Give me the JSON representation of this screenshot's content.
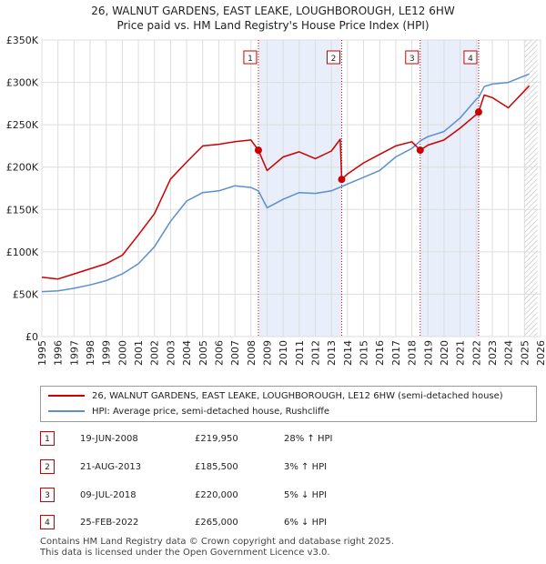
{
  "title_line1": "26, WALNUT GARDENS, EAST LEAKE, LOUGHBOROUGH, LE12 6HW",
  "title_line2": "Price paid vs. HM Land Registry's House Price Index (HPI)",
  "legend": {
    "property_label": "26, WALNUT GARDENS, EAST LEAKE, LOUGHBOROUGH, LE12 6HW (semi-detached house)",
    "hpi_label": "HPI: Average price, semi-detached house, Rushcliffe"
  },
  "sales": [
    {
      "num": "1",
      "date": "19-JUN-2008",
      "price": "£219,950",
      "hpi": "28% ↑ HPI"
    },
    {
      "num": "2",
      "date": "21-AUG-2013",
      "price": "£185,500",
      "hpi": "3% ↑ HPI"
    },
    {
      "num": "3",
      "date": "09-JUL-2018",
      "price": "£220,000",
      "hpi": "5% ↓ HPI"
    },
    {
      "num": "4",
      "date": "25-FEB-2022",
      "price": "£265,000",
      "hpi": "6% ↓ HPI"
    }
  ],
  "footer_line1": "Contains HM Land Registry data © Crown copyright and database right 2025.",
  "footer_line2": "This data is licensed under the Open Government Licence v3.0.",
  "colors": {
    "property": "#cc0000",
    "hpi": "#5b8fd0",
    "shade": "#e8eefa",
    "grid": "#dddddd"
  },
  "chart_data": {
    "type": "line",
    "title": "Price paid vs. HM Land Registry's House Price Index (HPI)",
    "xlabel": "",
    "ylabel": "",
    "xlim": [
      1995,
      2026
    ],
    "ylim": [
      0,
      350000
    ],
    "y_ticks": [
      0,
      50000,
      100000,
      150000,
      200000,
      250000,
      300000,
      350000
    ],
    "y_tick_labels": [
      "£0",
      "£50K",
      "£100K",
      "£150K",
      "£200K",
      "£250K",
      "£300K",
      "£350K"
    ],
    "x_ticks": [
      1995,
      1996,
      1997,
      1998,
      1999,
      2000,
      2001,
      2002,
      2003,
      2004,
      2005,
      2006,
      2007,
      2008,
      2009,
      2010,
      2011,
      2012,
      2013,
      2014,
      2015,
      2016,
      2017,
      2018,
      2019,
      2020,
      2021,
      2022,
      2023,
      2024,
      2025,
      2026
    ],
    "shaded_periods": [
      [
        2008.46,
        2013.64
      ],
      [
        2018.52,
        2022.15
      ]
    ],
    "future_hatch_from": 2025.0,
    "series": [
      {
        "name": "26, WALNUT GARDENS, EAST LEAKE, LOUGHBOROUGH, LE12 6HW (semi-detached house)",
        "x": [
          1995,
          1996,
          1997,
          1998,
          1999,
          2000,
          2001,
          2002,
          2003,
          2004,
          2005,
          2006,
          2007,
          2008.0,
          2008.46,
          2009,
          2010,
          2011,
          2012,
          2013.0,
          2013.55,
          2013.64,
          2014,
          2015,
          2016,
          2017,
          2018.0,
          2018.52,
          2019,
          2020,
          2021,
          2022.0,
          2022.15,
          2022.5,
          2023,
          2024,
          2025.3
        ],
        "y": [
          70000,
          68000,
          74000,
          80000,
          86000,
          96000,
          120000,
          145000,
          186000,
          206000,
          225000,
          227000,
          230000,
          232000,
          219950,
          196000,
          212000,
          218000,
          210000,
          219000,
          233000,
          185500,
          192000,
          205000,
          215000,
          225000,
          230000,
          220000,
          226000,
          232000,
          246000,
          262000,
          265000,
          285000,
          282000,
          270000,
          296000
        ]
      },
      {
        "name": "HPI: Average price, semi-detached house, Rushcliffe",
        "x": [
          1995,
          1996,
          1997,
          1998,
          1999,
          2000,
          2001,
          2002,
          2003,
          2004,
          2005,
          2006,
          2007,
          2008.0,
          2008.46,
          2009,
          2010,
          2011,
          2012,
          2013,
          2014,
          2015,
          2016,
          2017,
          2018.0,
          2018.52,
          2019,
          2020,
          2021,
          2022.0,
          2022.15,
          2022.5,
          2023,
          2024,
          2025.3
        ],
        "y": [
          53000,
          54000,
          57000,
          61000,
          66000,
          74000,
          86000,
          106000,
          136000,
          160000,
          170000,
          172000,
          178000,
          176000,
          172000,
          152000,
          162000,
          170000,
          169000,
          172000,
          180000,
          188000,
          196000,
          212000,
          222000,
          231000,
          236000,
          242000,
          258000,
          280000,
          282000,
          295000,
          298000,
          300000,
          310000
        ]
      }
    ],
    "sale_points": [
      {
        "label": "1",
        "x": 2008.46,
        "y": 219950
      },
      {
        "label": "2",
        "x": 2013.64,
        "y": 185500
      },
      {
        "label": "3",
        "x": 2018.52,
        "y": 220000
      },
      {
        "label": "4",
        "x": 2022.15,
        "y": 265000
      }
    ]
  }
}
